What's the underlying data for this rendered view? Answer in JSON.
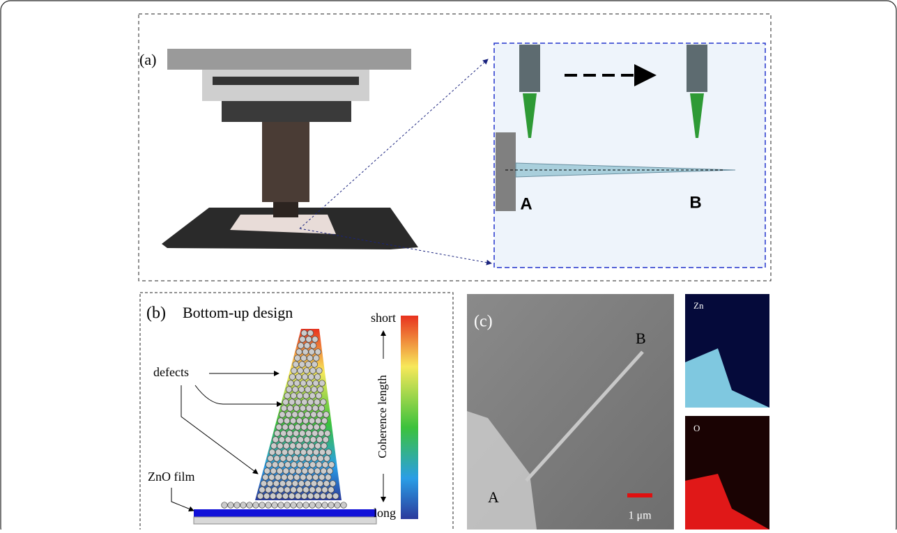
{
  "panel_a": {
    "label": "(a)",
    "point_a": "A",
    "point_b": "B"
  },
  "panel_b": {
    "label": "(b)",
    "title": "Bottom-up design",
    "scale_top": "short",
    "scale_bottom": "long",
    "scale_axis": "Coherence length",
    "defects_label": "defects",
    "film_label": "ZnO film"
  },
  "panel_c": {
    "label": "(c)",
    "point_b": "B",
    "point_a": "A",
    "scale_bar": "1 μm",
    "map_zn": "Zn",
    "map_o": "O"
  }
}
